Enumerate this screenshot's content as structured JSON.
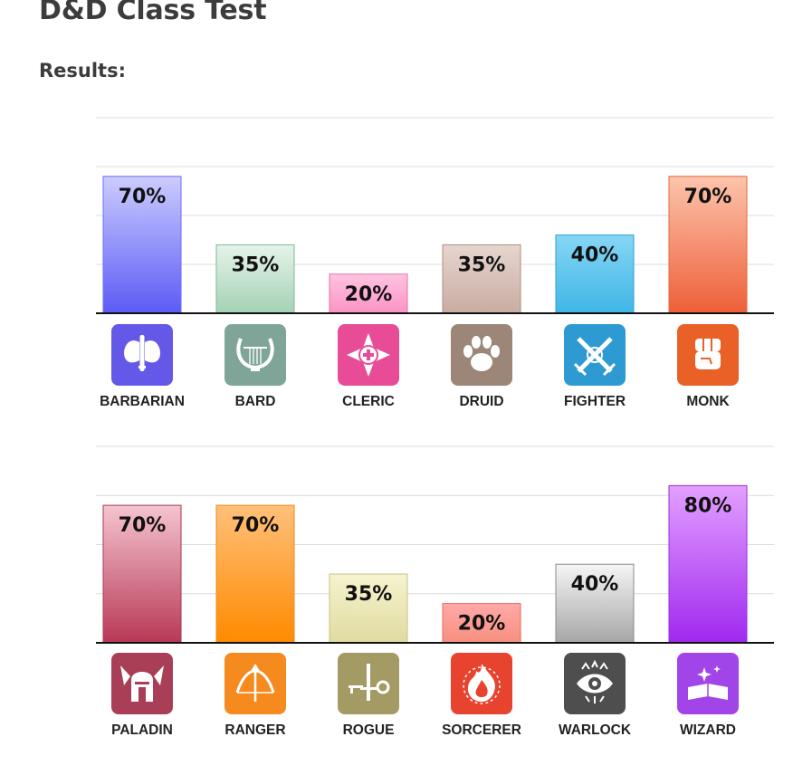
{
  "page": {
    "title": "D&D Class Test",
    "results_label": "Results:"
  },
  "chart_data": [
    {
      "type": "bar",
      "categories": [
        "BARBARIAN",
        "BARD",
        "CLERIC",
        "DRUID",
        "FIGHTER",
        "MONK"
      ],
      "values": [
        70,
        35,
        20,
        35,
        40,
        70
      ],
      "value_labels": [
        "70%",
        "35%",
        "20%",
        "35%",
        "40%",
        "70%"
      ],
      "ylim": [
        0,
        100
      ],
      "grid": true,
      "bar_colors": [
        [
          "#ccccff",
          "#5b5bf5"
        ],
        [
          "#e6f3ea",
          "#a3d2b4"
        ],
        [
          "#ffc4e0",
          "#fb93c6"
        ],
        [
          "#e6d6cf",
          "#c9aca2"
        ],
        [
          "#86d6f5",
          "#3fb6e6"
        ],
        [
          "#fcc4ac",
          "#ee5f39"
        ]
      ],
      "bar_borders": [
        "#6b6bff",
        "#7fb894",
        "#e670a6",
        "#b08d80",
        "#2aa1d3",
        "#e8663a"
      ],
      "icons": [
        {
          "name": "axe-icon",
          "bg": "#6358e8"
        },
        {
          "name": "lyre-icon",
          "bg": "#7fa599"
        },
        {
          "name": "holy-symbol-icon",
          "bg": "#e84c97"
        },
        {
          "name": "paw-icon",
          "bg": "#9b8677"
        },
        {
          "name": "crossed-swords-icon",
          "bg": "#2d9bd1"
        },
        {
          "name": "fist-icon",
          "bg": "#ea6128"
        }
      ]
    },
    {
      "type": "bar",
      "categories": [
        "PALADIN",
        "RANGER",
        "ROGUE",
        "SORCERER",
        "WARLOCK",
        "WIZARD"
      ],
      "values": [
        70,
        70,
        35,
        20,
        40,
        80
      ],
      "value_labels": [
        "70%",
        "70%",
        "35%",
        "20%",
        "40%",
        "80%"
      ],
      "ylim": [
        0,
        100
      ],
      "grid": true,
      "bar_colors": [
        [
          "#f5c4cf",
          "#b83856"
        ],
        [
          "#ffc07a",
          "#ff8a00"
        ],
        [
          "#f6f3cf",
          "#e0dba0"
        ],
        [
          "#ffa9a9",
          "#f6907f"
        ],
        [
          "#f5f5f5",
          "#a6a6a6"
        ],
        [
          "#e3a0ff",
          "#a028f0"
        ]
      ],
      "bar_borders": [
        "#a83a52",
        "#e88a20",
        "#c9c283",
        "#e86a5a",
        "#8a8a8a",
        "#9a2be0"
      ],
      "icons": [
        {
          "name": "winged-helmet-icon",
          "bg": "#a83f57"
        },
        {
          "name": "bow-icon",
          "bg": "#f58a1f"
        },
        {
          "name": "dagger-key-icon",
          "bg": "#a49b64"
        },
        {
          "name": "flame-icon",
          "bg": "#e8432e"
        },
        {
          "name": "eye-icon",
          "bg": "#4e4e4e"
        },
        {
          "name": "spellbook-icon",
          "bg": "#a245e8"
        }
      ]
    }
  ]
}
